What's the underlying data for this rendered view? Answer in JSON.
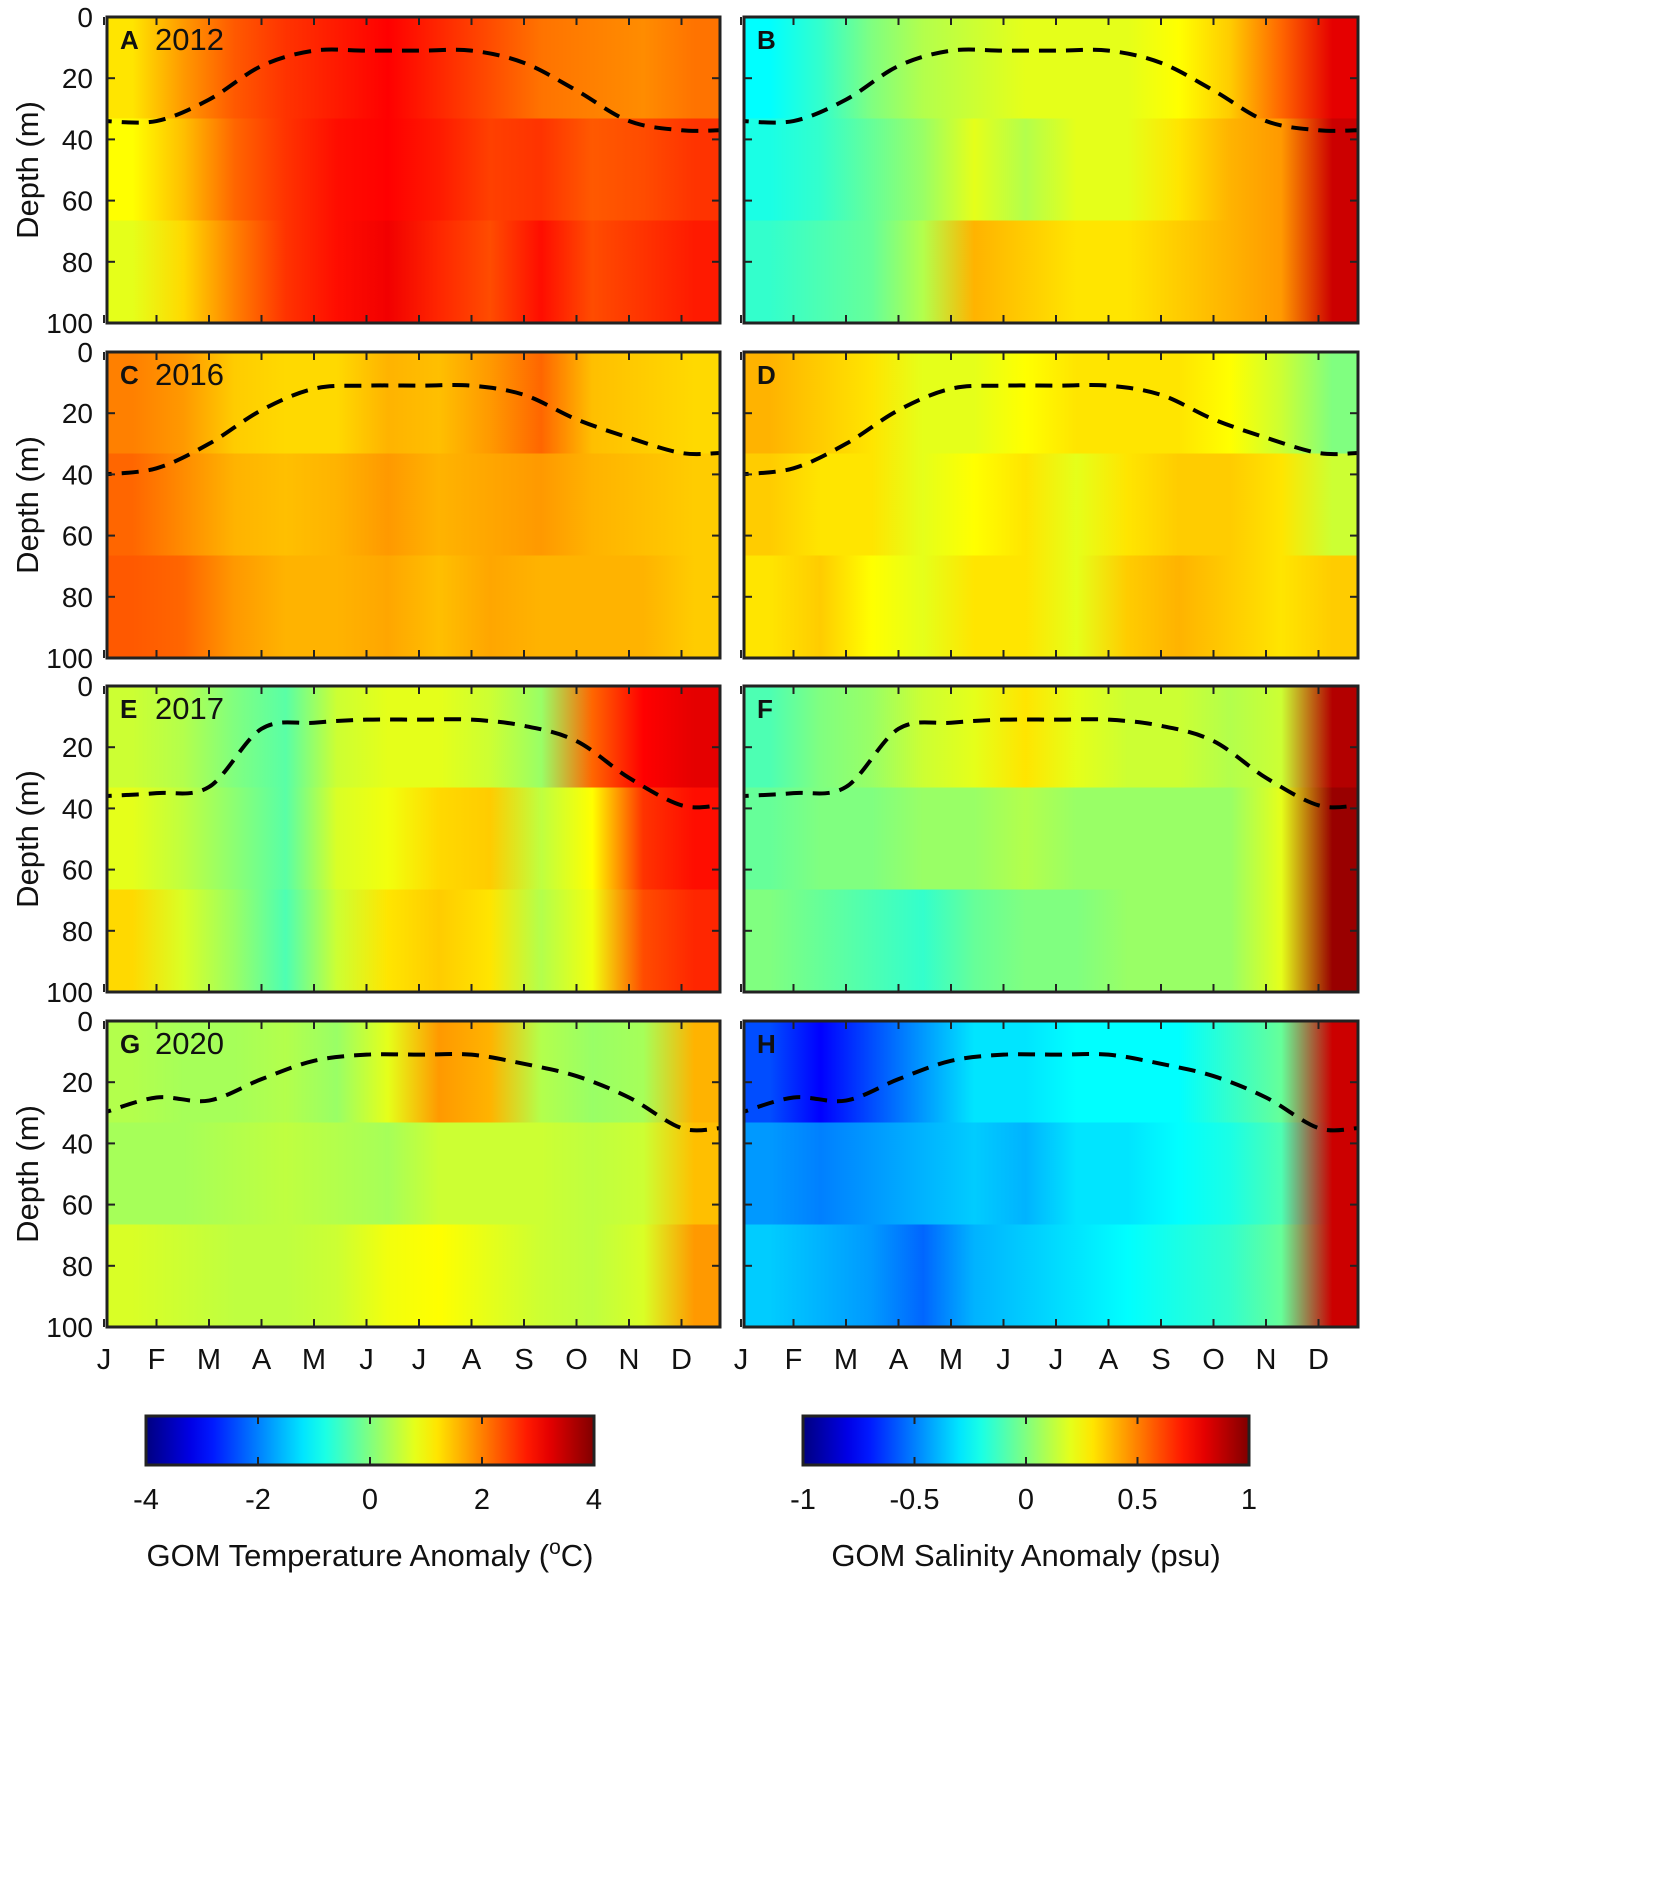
{
  "chart_data": {
    "type": "heatmap",
    "title": "",
    "ylabel": "Depth (m)",
    "ylim": [
      0,
      100
    ],
    "y_ticks": [
      "0",
      "20",
      "40",
      "60",
      "80",
      "100"
    ],
    "x_ticks": [
      "J",
      "F",
      "M",
      "A",
      "M",
      "J",
      "J",
      "A",
      "S",
      "O",
      "N",
      "D"
    ],
    "months": [
      1,
      2,
      3,
      4,
      5,
      6,
      7,
      8,
      9,
      10,
      11,
      12
    ],
    "mixed_layer_line": "dashed",
    "panels": [
      {
        "id": "A",
        "year": "2012",
        "variable": "temperature",
        "mld": [
          34,
          34,
          27,
          16,
          11,
          11,
          11,
          11,
          15,
          24,
          34,
          37
        ],
        "anomaly": [
          [
            1.2,
            1.8,
            2.3,
            2.6,
            2.8,
            3.0,
            2.7,
            2.4,
            2.1,
            2.0,
            1.9,
            2.1
          ],
          [
            1.0,
            1.5,
            2.2,
            2.6,
            2.9,
            3.0,
            2.8,
            2.5,
            2.6,
            2.3,
            2.4,
            2.6
          ],
          [
            0.8,
            1.3,
            2.0,
            2.6,
            2.9,
            3.1,
            2.7,
            2.4,
            2.9,
            2.4,
            2.6,
            2.8
          ]
        ]
      },
      {
        "id": "B",
        "year": "",
        "variable": "salinity",
        "mld": [
          34,
          34,
          27,
          16,
          11,
          11,
          11,
          11,
          15,
          24,
          34,
          37
        ],
        "anomaly": [
          [
            -0.25,
            -0.15,
            0.0,
            0.1,
            0.15,
            0.2,
            0.2,
            0.2,
            0.25,
            0.35,
            0.55,
            0.8
          ],
          [
            -0.2,
            -0.15,
            -0.05,
            0.05,
            0.2,
            0.1,
            0.2,
            0.2,
            0.3,
            0.4,
            0.45,
            0.85
          ],
          [
            -0.15,
            -0.1,
            -0.05,
            0.1,
            0.4,
            0.35,
            0.3,
            0.3,
            0.35,
            0.4,
            0.45,
            0.85
          ]
        ]
      },
      {
        "id": "C",
        "year": "2016",
        "variable": "temperature",
        "mld": [
          40,
          38,
          30,
          19,
          12,
          11,
          11,
          11,
          14,
          22,
          28,
          33
        ],
        "anomaly": [
          [
            2.0,
            1.8,
            1.4,
            1.3,
            1.3,
            1.6,
            1.5,
            1.8,
            2.2,
            1.5,
            1.4,
            1.3
          ],
          [
            2.2,
            1.9,
            1.6,
            1.5,
            1.6,
            1.8,
            1.6,
            1.7,
            1.8,
            1.6,
            1.5,
            1.4
          ],
          [
            2.3,
            2.2,
            1.8,
            1.6,
            1.6,
            1.7,
            1.5,
            1.7,
            1.6,
            1.6,
            1.6,
            1.4
          ]
        ]
      },
      {
        "id": "D",
        "year": "",
        "variable": "salinity",
        "mld": [
          40,
          38,
          30,
          19,
          12,
          11,
          11,
          11,
          14,
          22,
          28,
          33
        ],
        "anomaly": [
          [
            0.4,
            0.35,
            0.3,
            0.2,
            0.2,
            0.25,
            0.3,
            0.3,
            0.3,
            0.25,
            0.15,
            0.0
          ],
          [
            0.35,
            0.3,
            0.3,
            0.2,
            0.25,
            0.3,
            0.2,
            0.3,
            0.35,
            0.35,
            0.3,
            0.15
          ],
          [
            0.3,
            0.35,
            0.25,
            0.2,
            0.3,
            0.3,
            0.2,
            0.35,
            0.4,
            0.35,
            0.3,
            0.35
          ]
        ]
      },
      {
        "id": "E",
        "year": "2017",
        "variable": "temperature",
        "mld": [
          36,
          35,
          33,
          14,
          12,
          11,
          11,
          11,
          13,
          18,
          30,
          39
        ],
        "anomaly": [
          [
            0.6,
            0.4,
            0.0,
            -0.3,
            0.6,
            0.8,
            0.8,
            0.6,
            0.2,
            2.2,
            3.0,
            3.2
          ],
          [
            0.8,
            0.5,
            0.1,
            -0.3,
            0.7,
            0.9,
            1.3,
            1.4,
            0.5,
            1.0,
            2.6,
            2.9
          ],
          [
            1.3,
            0.7,
            0.2,
            -0.4,
            0.6,
            1.2,
            1.4,
            1.2,
            0.4,
            0.9,
            2.4,
            2.7
          ]
        ]
      },
      {
        "id": "F",
        "year": "",
        "variable": "salinity",
        "mld": [
          36,
          35,
          33,
          14,
          12,
          11,
          11,
          11,
          13,
          18,
          30,
          39
        ],
        "anomaly": [
          [
            -0.1,
            0.0,
            0.05,
            0.15,
            0.2,
            0.3,
            0.2,
            0.15,
            0.15,
            0.1,
            0.15,
            0.9
          ],
          [
            -0.05,
            0.0,
            0.0,
            0.05,
            0.05,
            0.1,
            0.05,
            0.05,
            0.05,
            0.05,
            0.2,
            0.95
          ],
          [
            0.0,
            -0.05,
            -0.1,
            -0.15,
            -0.05,
            0.0,
            0.0,
            0.05,
            0.05,
            0.05,
            0.2,
            0.95
          ]
        ]
      },
      {
        "id": "G",
        "year": "2020",
        "variable": "temperature",
        "mld": [
          30,
          25,
          26,
          19,
          13,
          11,
          11,
          11,
          14,
          18,
          25,
          35
        ],
        "anomaly": [
          [
            0.4,
            0.3,
            0.3,
            0.4,
            0.2,
            0.8,
            1.8,
            1.6,
            0.4,
            0.2,
            0.3,
            1.6
          ],
          [
            0.3,
            0.3,
            0.4,
            0.5,
            0.4,
            0.3,
            0.6,
            0.6,
            0.6,
            0.5,
            0.6,
            1.5
          ],
          [
            0.7,
            0.6,
            0.5,
            0.5,
            0.6,
            0.9,
            1.0,
            0.8,
            0.6,
            0.5,
            0.7,
            1.8
          ]
        ]
      },
      {
        "id": "H",
        "year": "",
        "variable": "salinity",
        "mld": [
          30,
          25,
          26,
          19,
          13,
          11,
          11,
          11,
          14,
          18,
          25,
          35
        ],
        "anomaly": [
          [
            -0.6,
            -0.75,
            -0.6,
            -0.45,
            -0.3,
            -0.3,
            -0.25,
            -0.25,
            -0.25,
            -0.15,
            -0.05,
            0.85
          ],
          [
            -0.45,
            -0.5,
            -0.45,
            -0.4,
            -0.35,
            -0.4,
            -0.3,
            -0.3,
            -0.25,
            -0.2,
            -0.1,
            0.85
          ],
          [
            -0.35,
            -0.4,
            -0.45,
            -0.55,
            -0.4,
            -0.35,
            -0.3,
            -0.25,
            -0.2,
            -0.15,
            -0.05,
            0.85
          ]
        ]
      }
    ],
    "colorbars": [
      {
        "variable": "temperature",
        "label": "GOM Temperature Anomaly (",
        "label_sup": "o",
        "label_end": "C)",
        "range": [
          -4,
          4
        ],
        "ticks": [
          "-4",
          "-2",
          "0",
          "2",
          "4"
        ]
      },
      {
        "variable": "salinity",
        "label": "GOM Salinity Anomaly (psu)",
        "label_sup": "",
        "label_end": "",
        "range": [
          -1,
          1
        ],
        "ticks": [
          "-1",
          "-0.5",
          "0",
          "0.5",
          "1"
        ]
      }
    ]
  }
}
